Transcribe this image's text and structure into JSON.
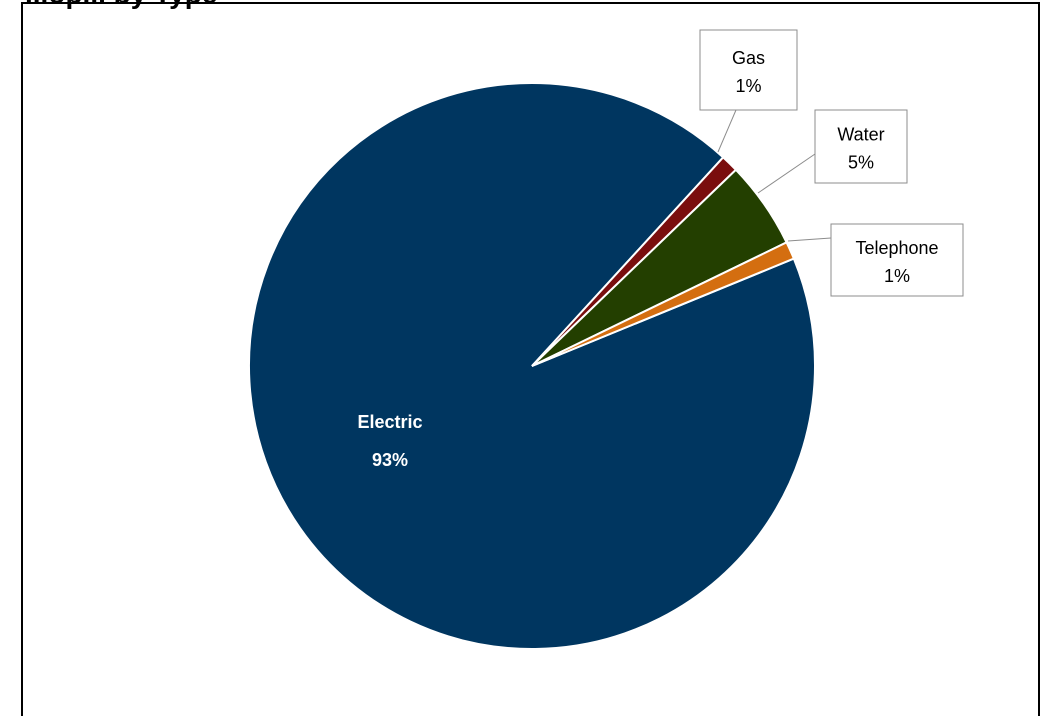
{
  "chart_data": {
    "type": "pie",
    "title": "...op... by Type",
    "slices": [
      {
        "label": "Electric",
        "value": 93,
        "value_label": "93%",
        "color": "#003660"
      },
      {
        "label": "Telephone",
        "value": 1,
        "value_label": "1%",
        "color": "#7a0e0e"
      },
      {
        "label": "Water",
        "value": 5,
        "value_label": "5%",
        "color": "#233f00"
      },
      {
        "label": "Gas",
        "value": 1,
        "value_label": "1%",
        "color": "#d46e10"
      }
    ],
    "legend": "none",
    "data_labels": "callouts"
  }
}
